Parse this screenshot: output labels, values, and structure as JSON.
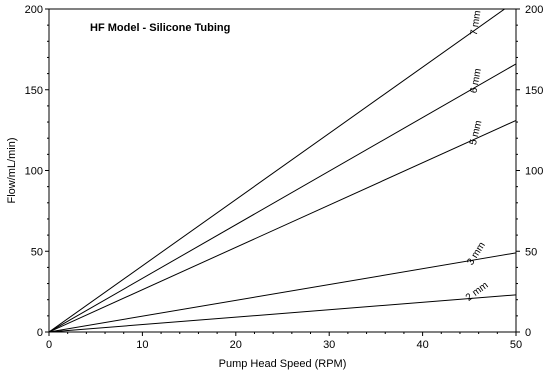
{
  "chart_data": {
    "type": "line",
    "title": "HF Model - Silicone Tubing",
    "xlabel": "Pump Head Speed (RPM)",
    "ylabel": "Flow/mL/min)",
    "xlim": [
      0,
      50
    ],
    "ylim": [
      0,
      200
    ],
    "x_ticks": [
      0,
      10,
      20,
      30,
      40,
      50
    ],
    "y_ticks": [
      0,
      50,
      100,
      150,
      200
    ],
    "y_ticks_right": [
      0,
      50,
      100,
      150,
      200
    ],
    "grid": false,
    "legend": "none",
    "series": [
      {
        "name": "7 mm",
        "x": [
          0,
          50
        ],
        "y": [
          0,
          205
        ]
      },
      {
        "name": "6 mm",
        "x": [
          0,
          50
        ],
        "y": [
          0,
          166
        ]
      },
      {
        "name": "5 mm",
        "x": [
          0,
          50
        ],
        "y": [
          0,
          131
        ]
      },
      {
        "name": "3 mm",
        "x": [
          0,
          50
        ],
        "y": [
          0,
          49
        ]
      },
      {
        "name": "2 mm",
        "x": [
          0,
          50
        ],
        "y": [
          0,
          23
        ]
      }
    ]
  }
}
